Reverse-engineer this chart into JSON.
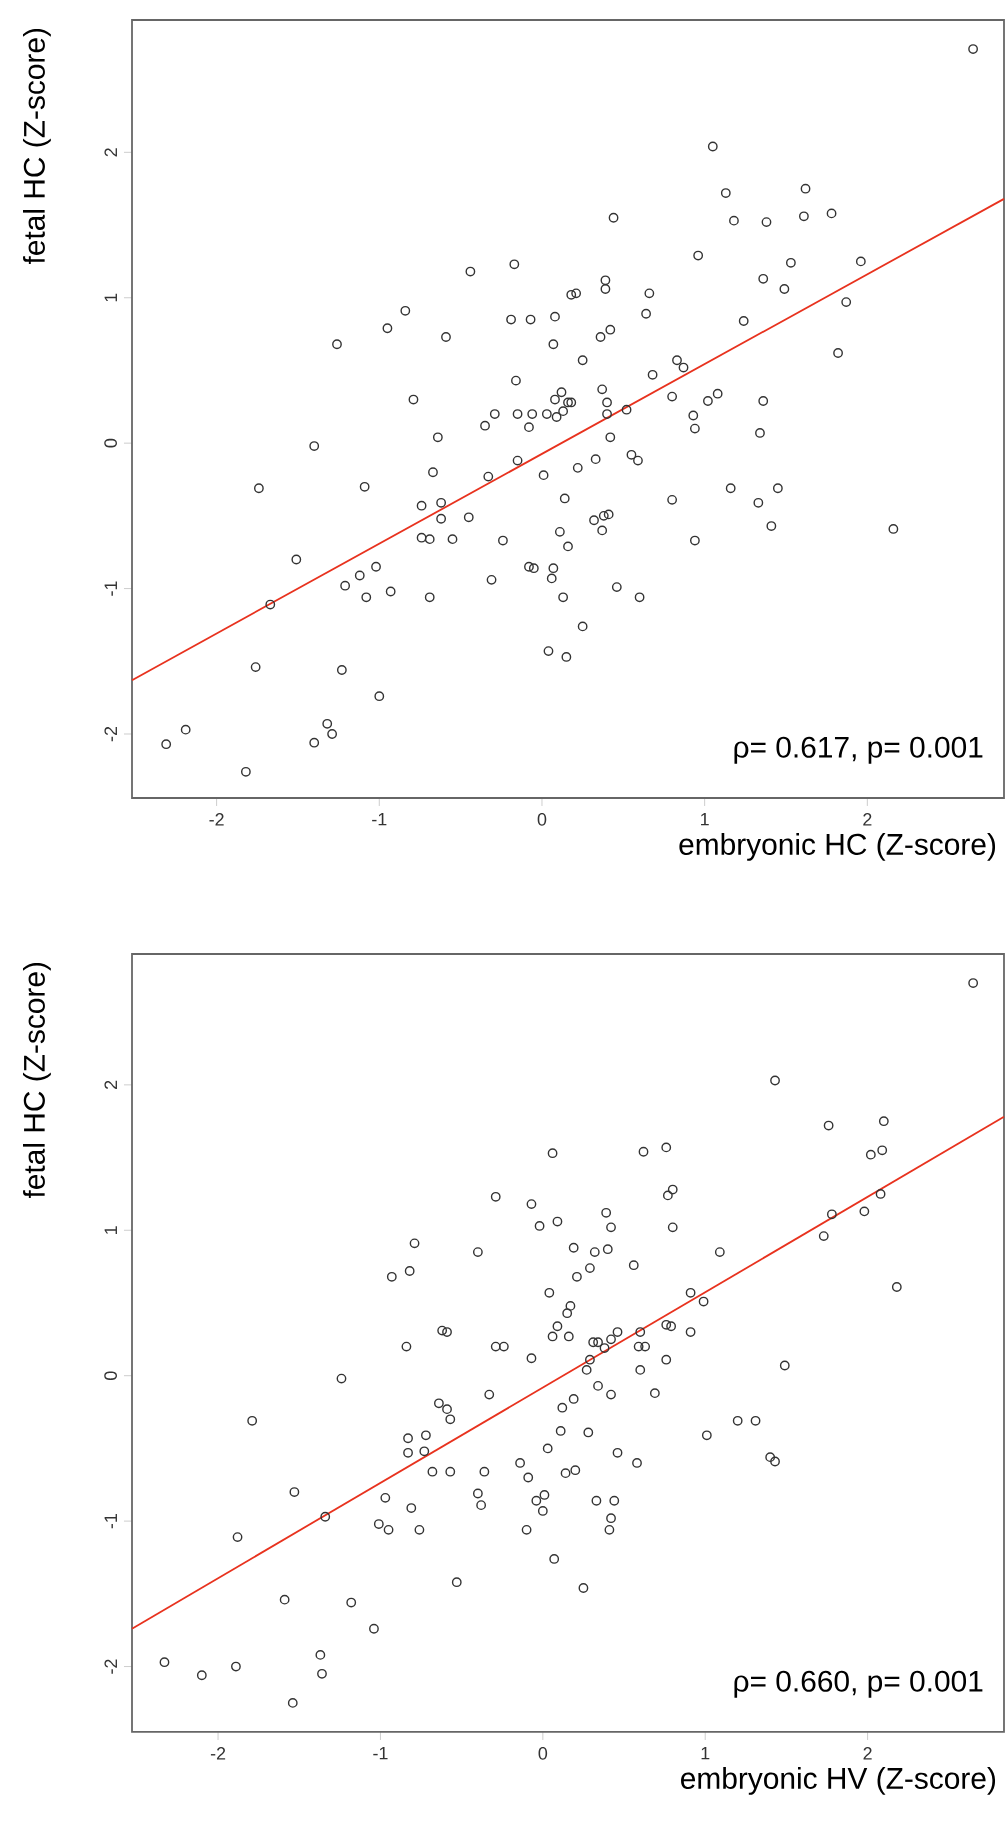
{
  "chart_data": [
    {
      "type": "scatter",
      "xlabel": "embryonic HC (Z-score)",
      "ylabel": "fetal HC (Z-score)",
      "xlim": [
        -2.52,
        2.84
      ],
      "ylim": [
        -2.44,
        2.91
      ],
      "xticks": [
        -2,
        -1,
        0,
        1,
        2
      ],
      "yticks": [
        -2,
        -1,
        0,
        1,
        2
      ],
      "annotations": [
        "ρ= 0.617, p= 0.001"
      ],
      "series": [
        {
          "type": "scatter",
          "color": "#333333",
          "marker": "circle",
          "x": [
            -2.31,
            -2.19,
            -1.82,
            -1.74,
            -1.76,
            -1.67,
            -1.51,
            -1.4,
            -1.4,
            -1.32,
            -1.29,
            -1.26,
            -1.23,
            -1.21,
            -1.12,
            -1.09,
            -1.08,
            -1.02,
            -1.0,
            -0.95,
            -0.93,
            -0.84,
            -0.79,
            -0.69,
            -0.74,
            -0.74,
            -0.69,
            -0.67,
            -0.64,
            -0.62,
            -0.62,
            -0.59,
            -0.55,
            -0.45,
            -0.44,
            -0.33,
            -0.35,
            -0.31,
            -0.29,
            -0.24,
            -0.19,
            -0.17,
            -0.16,
            -0.15,
            -0.15,
            -0.08,
            -0.07,
            -0.08,
            -0.06,
            -0.05,
            0.01,
            0.03,
            0.06,
            0.07,
            0.07,
            0.08,
            0.08,
            0.09,
            0.11,
            0.12,
            0.13,
            0.14,
            0.13,
            0.04,
            0.15,
            0.16,
            0.16,
            0.18,
            0.18,
            0.21,
            0.22,
            0.25,
            0.25,
            0.32,
            0.33,
            0.36,
            0.37,
            0.37,
            0.38,
            0.39,
            0.39,
            0.4,
            0.4,
            0.41,
            0.42,
            0.42,
            0.44,
            0.46,
            0.52,
            0.55,
            0.59,
            0.6,
            0.64,
            0.66,
            0.68,
            0.8,
            0.8,
            0.83,
            0.87,
            0.93,
            0.94,
            0.94,
            0.96,
            1.05,
            1.13,
            1.18,
            1.38,
            1.36,
            1.53,
            1.49,
            1.24,
            1.62,
            1.61,
            1.78,
            1.96,
            1.87,
            1.82,
            2.65,
            1.08,
            1.02,
            1.36,
            1.34,
            1.16,
            1.33,
            1.45,
            1.41,
            2.16
          ],
          "values": [
            -2.07,
            -1.97,
            -2.26,
            -0.31,
            -1.54,
            -1.11,
            -0.8,
            -0.02,
            -2.06,
            -1.93,
            -2.0,
            0.68,
            -1.56,
            -0.98,
            -0.91,
            -0.3,
            -1.06,
            -0.85,
            -1.74,
            0.79,
            -1.02,
            0.91,
            0.3,
            -1.06,
            -0.43,
            -0.65,
            -0.66,
            -0.2,
            0.04,
            -0.41,
            -0.52,
            0.73,
            -0.66,
            -0.51,
            1.18,
            -0.23,
            0.12,
            -0.94,
            0.2,
            -0.67,
            0.85,
            1.23,
            0.43,
            -0.12,
            0.2,
            -0.85,
            0.85,
            0.11,
            0.2,
            -0.86,
            -0.22,
            0.2,
            -0.93,
            -0.86,
            0.68,
            0.87,
            0.3,
            0.18,
            -0.61,
            0.35,
            0.22,
            -0.38,
            -1.06,
            -1.43,
            -1.47,
            -0.71,
            0.28,
            1.02,
            0.28,
            1.03,
            -0.17,
            0.57,
            -1.26,
            -0.53,
            -0.11,
            0.73,
            0.37,
            -0.6,
            -0.5,
            1.12,
            1.06,
            0.28,
            0.2,
            -0.49,
            0.78,
            0.04,
            1.55,
            -0.99,
            0.23,
            -0.08,
            -0.12,
            -1.06,
            0.89,
            1.03,
            0.47,
            -0.39,
            0.32,
            0.57,
            0.52,
            0.19,
            0.1,
            -0.67,
            1.29,
            2.04,
            1.72,
            1.53,
            1.52,
            1.13,
            1.24,
            1.06,
            0.84,
            1.75,
            1.56,
            1.58,
            1.25,
            0.97,
            0.62,
            2.71,
            0.34,
            0.29,
            0.29,
            0.07,
            -0.31,
            -0.41,
            -0.31,
            -0.57,
            -0.59
          ]
        },
        {
          "type": "line",
          "color": "#e8321e",
          "marker": "none",
          "x": [
            -2.52,
            2.84
          ],
          "values": [
            -1.63,
            1.68
          ]
        }
      ]
    },
    {
      "type": "scatter",
      "xlabel": "embryonic HV (Z-score)",
      "ylabel": "fetal HC (Z-score)",
      "xlim": [
        -2.53,
        2.84
      ],
      "ylim": [
        -2.45,
        2.9
      ],
      "xticks": [
        -2,
        -1,
        0,
        1,
        2
      ],
      "yticks": [
        -2,
        -1,
        0,
        1,
        2
      ],
      "annotations": [
        "ρ= 0.660, p= 0.001"
      ],
      "series": [
        {
          "type": "scatter",
          "color": "#333333",
          "marker": "circle",
          "x": [
            -2.33,
            -2.1,
            -1.89,
            -1.88,
            -1.79,
            -1.59,
            -1.54,
            -1.53,
            -1.37,
            -1.36,
            -1.34,
            -1.24,
            -1.18,
            -1.04,
            -1.01,
            -0.97,
            -0.95,
            -0.93,
            -0.84,
            -0.82,
            -0.79,
            -0.83,
            -0.83,
            -0.72,
            -0.73,
            -0.81,
            -0.76,
            -0.68,
            -0.64,
            -0.59,
            -0.57,
            -0.62,
            -0.59,
            -0.57,
            -0.53,
            -0.4,
            -0.4,
            -0.38,
            -0.36,
            -0.33,
            -0.29,
            -0.24,
            -0.29,
            -0.14,
            -0.1,
            -0.09,
            -0.07,
            -0.07,
            -0.04,
            -0.02,
            0.0,
            0.01,
            0.03,
            0.04,
            0.06,
            0.06,
            0.07,
            0.09,
            0.09,
            0.11,
            0.12,
            0.14,
            0.15,
            0.17,
            0.16,
            0.19,
            0.2,
            0.19,
            0.21,
            0.25,
            0.27,
            0.28,
            0.29,
            0.29,
            0.32,
            0.31,
            0.34,
            0.33,
            0.34,
            0.38,
            0.39,
            0.4,
            0.42,
            0.42,
            0.44,
            0.42,
            0.41,
            0.42,
            0.46,
            0.46,
            0.56,
            0.58,
            0.59,
            0.6,
            0.6,
            0.63,
            0.62,
            0.69,
            0.76,
            0.77,
            0.8,
            0.8,
            0.76,
            0.79,
            0.76,
            0.91,
            0.91,
            0.99,
            1.09,
            1.43,
            1.01,
            1.2,
            1.31,
            1.49,
            1.4,
            1.43,
            1.76,
            1.73,
            1.78,
            1.98,
            2.02,
            2.09,
            2.1,
            2.08,
            2.18,
            2.65
          ],
          "values": [
            -1.97,
            -2.06,
            -2.0,
            -1.11,
            -0.31,
            -1.54,
            -2.25,
            -0.8,
            -1.92,
            -2.05,
            -0.97,
            -0.02,
            -1.56,
            -1.74,
            -1.02,
            -0.84,
            -1.06,
            0.68,
            0.2,
            0.72,
            0.91,
            -0.43,
            -0.53,
            -0.41,
            -0.52,
            -0.91,
            -1.06,
            -0.66,
            -0.19,
            -0.23,
            -0.3,
            0.31,
            0.3,
            -0.66,
            -1.42,
            0.85,
            -0.81,
            -0.89,
            -0.66,
            -0.13,
            0.2,
            0.2,
            1.23,
            -0.6,
            -1.06,
            -0.7,
            1.18,
            0.12,
            -0.86,
            1.03,
            -0.93,
            -0.82,
            -0.5,
            0.57,
            1.53,
            0.27,
            -1.26,
            1.06,
            0.34,
            -0.38,
            -0.22,
            -0.67,
            0.43,
            0.48,
            0.27,
            -0.16,
            -0.65,
            0.88,
            0.68,
            -1.46,
            0.04,
            -0.39,
            0.11,
            0.74,
            0.85,
            0.23,
            0.23,
            -0.86,
            -0.07,
            0.19,
            1.12,
            0.87,
            1.02,
            -0.13,
            -0.86,
            -0.98,
            -1.06,
            0.25,
            0.3,
            -0.53,
            0.76,
            -0.6,
            0.2,
            0.3,
            0.04,
            0.2,
            1.54,
            -0.12,
            1.57,
            1.24,
            1.28,
            1.02,
            0.35,
            0.34,
            0.11,
            0.57,
            0.3,
            0.51,
            0.85,
            2.03,
            -0.41,
            -0.31,
            -0.31,
            0.07,
            -0.56,
            -0.59,
            1.72,
            0.96,
            1.11,
            1.13,
            1.52,
            1.55,
            1.75,
            1.25,
            0.61,
            2.7
          ]
        },
        {
          "type": "line",
          "color": "#e8321e",
          "marker": "none",
          "x": [
            -2.53,
            2.84
          ],
          "values": [
            -1.74,
            1.78
          ]
        }
      ]
    }
  ]
}
